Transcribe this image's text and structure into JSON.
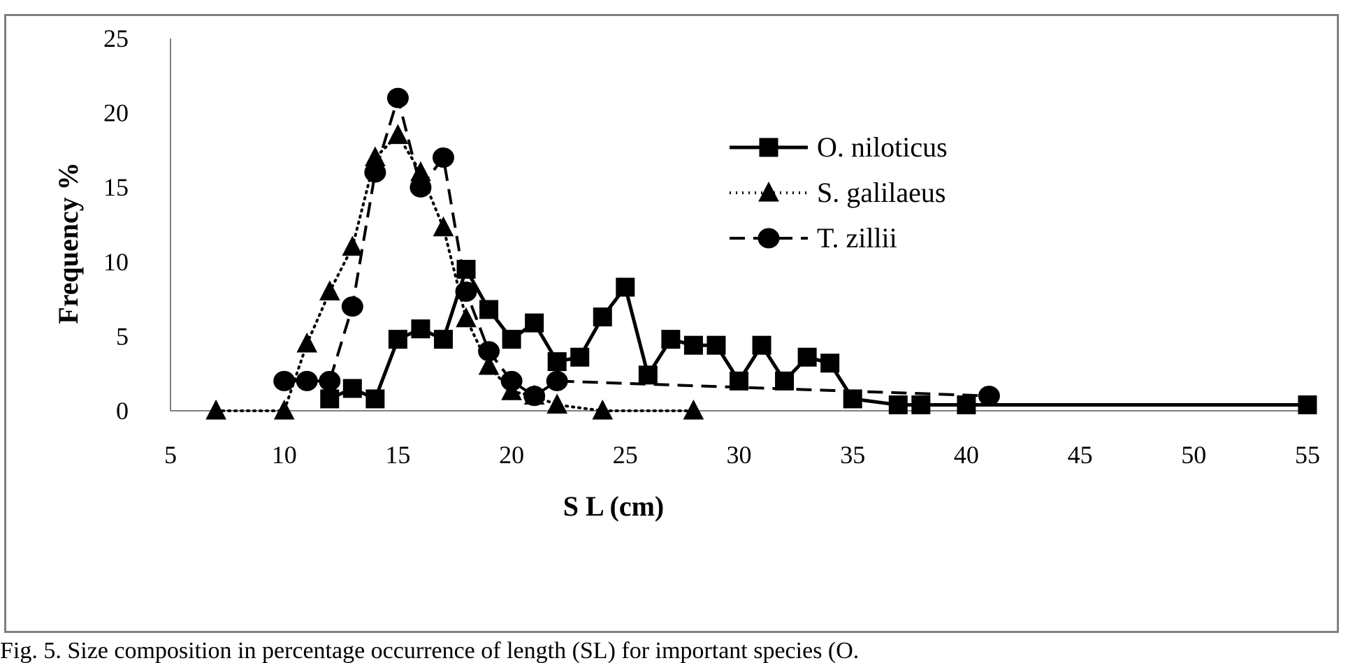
{
  "caption": "Fig. 5. Size composition in percentage occurrence of length (SL) for important species (O.",
  "chart_data": {
    "type": "line",
    "title": "",
    "xlabel": "S L (cm)",
    "ylabel": "Frequency %",
    "xlim": [
      5,
      55
    ],
    "ylim": [
      0,
      25
    ],
    "xticks": [
      5,
      10,
      15,
      20,
      25,
      30,
      35,
      40,
      45,
      50,
      55
    ],
    "yticks": [
      0,
      5,
      10,
      15,
      20,
      25
    ],
    "grid": false,
    "legend_position": "right",
    "series": [
      {
        "name": "O. niloticus",
        "marker": "square",
        "line": "solid",
        "points": [
          [
            12,
            0.8
          ],
          [
            13,
            1.5
          ],
          [
            14,
            0.8
          ],
          [
            15,
            4.8
          ],
          [
            16,
            5.5
          ],
          [
            17,
            4.8
          ],
          [
            18,
            9.5
          ],
          [
            19,
            6.8
          ],
          [
            20,
            4.8
          ],
          [
            21,
            5.9
          ],
          [
            22,
            3.3
          ],
          [
            23,
            3.6
          ],
          [
            24,
            6.3
          ],
          [
            25,
            8.3
          ],
          [
            26,
            2.4
          ],
          [
            27,
            4.8
          ],
          [
            28,
            4.4
          ],
          [
            29,
            4.4
          ],
          [
            30,
            2.0
          ],
          [
            31,
            4.4
          ],
          [
            32,
            2.0
          ],
          [
            33,
            3.6
          ],
          [
            34,
            3.2
          ],
          [
            35,
            0.8
          ],
          [
            37,
            0.4
          ],
          [
            38,
            0.4
          ],
          [
            40,
            0.4
          ],
          [
            55,
            0.4
          ]
        ]
      },
      {
        "name": "S. galilaeus",
        "marker": "triangle",
        "line": "dotted",
        "points": [
          [
            7,
            0
          ],
          [
            10,
            0
          ],
          [
            11,
            4.5
          ],
          [
            12,
            8.0
          ],
          [
            13,
            11.0
          ],
          [
            14,
            17.0
          ],
          [
            15,
            18.5
          ],
          [
            16,
            16.0
          ],
          [
            17,
            12.3
          ],
          [
            18,
            6.2
          ],
          [
            19,
            3.0
          ],
          [
            20,
            1.3
          ],
          [
            21,
            1.0
          ],
          [
            22,
            0.4
          ],
          [
            24,
            0
          ],
          [
            28,
            0
          ]
        ]
      },
      {
        "name": "T. zillii",
        "marker": "circle",
        "line": "dashed",
        "points": [
          [
            10,
            2
          ],
          [
            11,
            2
          ],
          [
            12,
            2
          ],
          [
            13,
            7
          ],
          [
            14,
            16
          ],
          [
            15,
            21
          ],
          [
            16,
            15
          ],
          [
            17,
            17
          ],
          [
            18,
            8
          ],
          [
            19,
            4
          ],
          [
            20,
            2
          ],
          [
            21,
            1
          ],
          [
            22,
            2
          ],
          [
            41,
            1
          ]
        ]
      }
    ]
  }
}
